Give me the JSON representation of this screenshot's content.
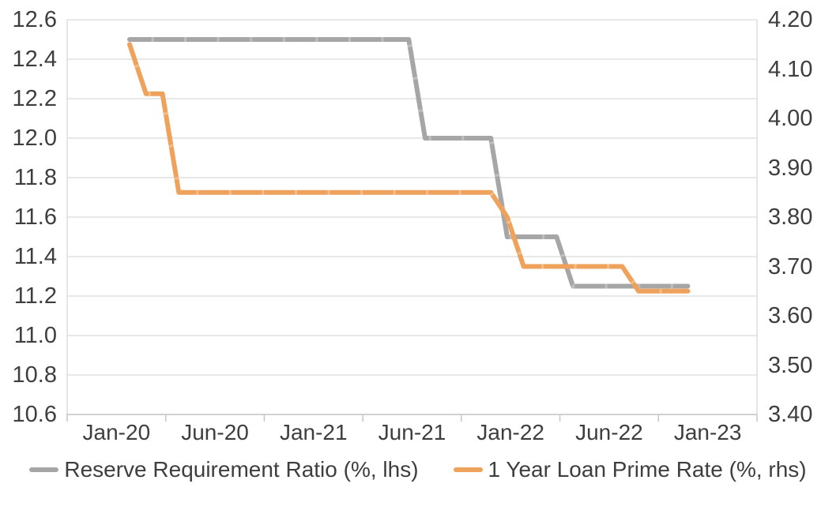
{
  "chart_data": {
    "type": "line",
    "title": "",
    "x_monthly": [
      "Jan-20",
      "Feb-20",
      "Mar-20",
      "Apr-20",
      "May-20",
      "Jun-20",
      "Jul-20",
      "Aug-20",
      "Sep-20",
      "Oct-20",
      "Nov-20",
      "Dec-20",
      "Jan-21",
      "Feb-21",
      "Mar-21",
      "Apr-21",
      "May-21",
      "Jun-21",
      "Jul-21",
      "Aug-21",
      "Sep-21",
      "Oct-21",
      "Nov-21",
      "Dec-21",
      "Jan-22",
      "Feb-22",
      "Mar-22",
      "Apr-22",
      "May-22",
      "Jun-22",
      "Jul-22",
      "Aug-22",
      "Sep-22",
      "Oct-22",
      "Nov-22"
    ],
    "series": [
      {
        "name": "Reserve Requirement Ratio (%, lhs)",
        "axis": "left",
        "color": "#A6A6A6",
        "values": [
          12.5,
          12.5,
          12.5,
          12.5,
          12.5,
          12.5,
          12.5,
          12.5,
          12.5,
          12.5,
          12.5,
          12.5,
          12.5,
          12.5,
          12.5,
          12.5,
          12.5,
          12.5,
          12.0,
          12.0,
          12.0,
          12.0,
          12.0,
          11.5,
          11.5,
          11.5,
          11.5,
          11.25,
          11.25,
          11.25,
          11.25,
          11.25,
          11.25,
          11.25,
          11.25
        ]
      },
      {
        "name": "1 Year Loan Prime Rate (%, rhs)",
        "axis": "right",
        "color": "#EFA25B",
        "values": [
          4.15,
          4.05,
          4.05,
          3.85,
          3.85,
          3.85,
          3.85,
          3.85,
          3.85,
          3.85,
          3.85,
          3.85,
          3.85,
          3.85,
          3.85,
          3.85,
          3.85,
          3.85,
          3.85,
          3.85,
          3.85,
          3.85,
          3.85,
          3.8,
          3.7,
          3.7,
          3.7,
          3.7,
          3.7,
          3.7,
          3.7,
          3.65,
          3.65,
          3.65,
          3.65
        ]
      }
    ],
    "left_axis": {
      "min": 10.6,
      "max": 12.6,
      "tick_labels": [
        "12.6",
        "12.4",
        "12.2",
        "12.0",
        "11.8",
        "11.6",
        "11.4",
        "11.2",
        "11.0",
        "10.8",
        "10.6"
      ]
    },
    "right_axis": {
      "min": 3.4,
      "max": 4.2,
      "tick_labels": [
        "4.20",
        "4.10",
        "4.00",
        "3.90",
        "3.80",
        "3.70",
        "3.60",
        "3.50",
        "3.40"
      ]
    },
    "x_axis": {
      "tick_labels": [
        "Jan-20",
        "Jun-20",
        "Jan-21",
        "Jun-21",
        "Jan-22",
        "Jun-22",
        "Jan-23"
      ]
    },
    "legend": {
      "position": "bottom",
      "entries": [
        "Reserve Requirement Ratio (%, lhs)",
        "1 Year Loan Prime Rate (%, rhs)"
      ]
    },
    "grid": "horizontal",
    "colors": {
      "grid": "#D9D9D9",
      "axis_line": "#C6C6C6",
      "text": "#3E3E3E",
      "background": "#FFFFFF"
    }
  }
}
